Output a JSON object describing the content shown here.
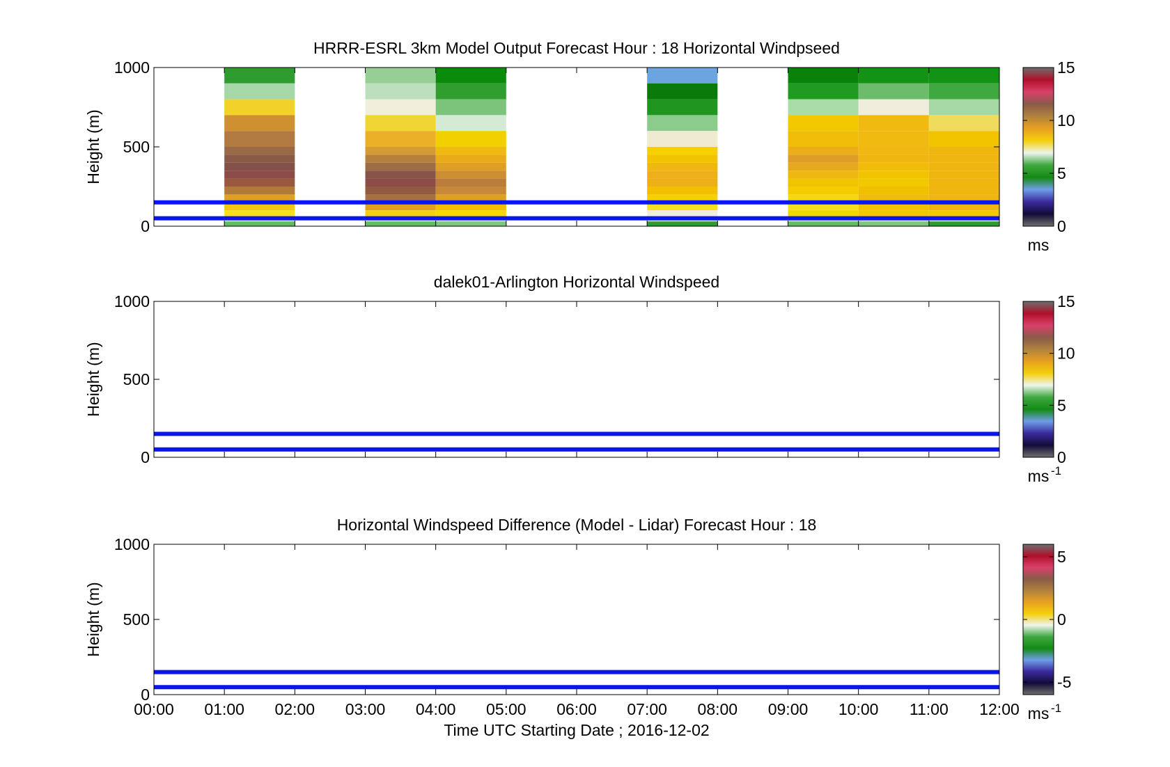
{
  "chart_data": [
    {
      "type": "heatmap",
      "title": "HRRR-ESRL 3km Model Output   Forecast Hour : 18 Horizontal Windpseed",
      "ylabel": "Height (m)",
      "xlabel": "",
      "ylim": [
        0,
        1000
      ],
      "yticks": [
        "0",
        "500",
        "1000"
      ],
      "xlim": [
        0,
        12
      ],
      "colorbar": {
        "label": "ms",
        "ticks": [
          {
            "v": 0,
            "t": "0"
          },
          {
            "v": 5,
            "t": "5"
          },
          {
            "v": 10,
            "t": "10"
          },
          {
            "v": 15,
            "t": "15"
          }
        ],
        "range": [
          0,
          15
        ]
      },
      "reference_lines_m": [
        150,
        50
      ],
      "columns": [
        {
          "hour_start": 1,
          "hour_end": 2,
          "tops": [
            1000,
            900,
            800,
            700,
            600,
            500,
            450,
            400,
            350,
            300,
            250,
            200,
            150,
            100,
            50,
            30
          ],
          "colors": [
            "#2e9c2e",
            "#a6d7a6",
            "#f2d22a",
            "#cf9030",
            "#b07a40",
            "#9a6a48",
            "#8a5a48",
            "#845048",
            "#8c4c48",
            "#9a5840",
            "#b07a38",
            "#e0a020",
            "#f2c810",
            "#f8e020",
            "#e9f0df",
            "#5fbf5f"
          ]
        },
        {
          "hour_start": 3,
          "hour_end": 4,
          "tops": [
            1000,
            900,
            800,
            700,
            600,
            500,
            450,
            400,
            350,
            300,
            250,
            200,
            150,
            100,
            50,
            30
          ],
          "colors": [
            "#96cf96",
            "#bce0bc",
            "#f1eedc",
            "#f0d632",
            "#e9b028",
            "#d59a34",
            "#b5803e",
            "#9c6c44",
            "#885448",
            "#8c4c48",
            "#935a42",
            "#a87040",
            "#e0a020",
            "#f6d010",
            "#e9f0df",
            "#5fbf5f"
          ]
        },
        {
          "hour_start": 4,
          "hour_end": 5,
          "tops": [
            1000,
            900,
            800,
            700,
            600,
            500,
            450,
            400,
            350,
            300,
            250,
            200,
            150,
            100,
            50,
            30
          ],
          "colors": [
            "#0a8c0a",
            "#2f9e2f",
            "#7cc47c",
            "#d4ead4",
            "#f2d000",
            "#efba10",
            "#e9ac18",
            "#df9e26",
            "#cd8e32",
            "#bb7e3a",
            "#c98838",
            "#e0a020",
            "#f2c000",
            "#f8d800",
            "#e9f0df",
            "#7cc87c"
          ]
        },
        {
          "hour_start": 7,
          "hour_end": 8,
          "tops": [
            1000,
            900,
            800,
            700,
            600,
            500,
            450,
            400,
            350,
            300,
            250,
            200,
            150,
            100,
            50,
            30
          ],
          "colors": [
            "#6ca4e0",
            "#0a7a0a",
            "#1f961f",
            "#8bcb8b",
            "#eeebd0",
            "#f6d000",
            "#f2c400",
            "#efb810",
            "#eeb018",
            "#eeb018",
            "#f2c000",
            "#f6d000",
            "#f8e020",
            "#f0eedc",
            "#d6ecd6",
            "#2e9c2e"
          ]
        },
        {
          "hour_start": 9,
          "hour_end": 10,
          "tops": [
            1000,
            900,
            800,
            700,
            600,
            500,
            450,
            400,
            350,
            300,
            250,
            200,
            150,
            100,
            50,
            30
          ],
          "colors": [
            "#0a820a",
            "#209a20",
            "#aadcaa",
            "#f2c800",
            "#f0be08",
            "#ebae18",
            "#de9e26",
            "#e6a81c",
            "#efb810",
            "#f2c400",
            "#f4cc00",
            "#f6d810",
            "#f8e020",
            "#f2d800",
            "#e0f0df",
            "#5fbf5f"
          ]
        },
        {
          "hour_start": 10,
          "hour_end": 11,
          "tops": [
            1000,
            900,
            800,
            700,
            600,
            500,
            450,
            400,
            350,
            300,
            250,
            200,
            150,
            100,
            50,
            30
          ],
          "colors": [
            "#139313",
            "#6cbc6c",
            "#f1eddc",
            "#f0ba10",
            "#f0ba10",
            "#f0b810",
            "#efb610",
            "#f0bc08",
            "#f2c400",
            "#f2c800",
            "#f0c000",
            "#f0bc08",
            "#f2c400",
            "#f2c800",
            "#e0f0df",
            "#7cc87c"
          ]
        },
        {
          "hour_start": 11,
          "hour_end": 12,
          "tops": [
            1000,
            900,
            800,
            700,
            600,
            500,
            450,
            400,
            350,
            300,
            250,
            200,
            150,
            100,
            50,
            30
          ],
          "colors": [
            "#139313",
            "#3fa83f",
            "#a6d8a6",
            "#f0dc5c",
            "#f2c400",
            "#efb610",
            "#efb610",
            "#efb610",
            "#efb610",
            "#efb610",
            "#efb610",
            "#efb610",
            "#efb610",
            "#f2c800",
            "#e0f0df",
            "#2e9c2e"
          ]
        }
      ]
    },
    {
      "type": "heatmap",
      "title": "dalek01-Arlington  Horizontal Windspeed",
      "ylabel": "Height (m)",
      "xlabel": "",
      "ylim": [
        0,
        1000
      ],
      "yticks": [
        "0",
        "500",
        "1000"
      ],
      "xlim": [
        0,
        12
      ],
      "colorbar": {
        "label": "ms",
        "label_sup": "-1",
        "ticks": [
          {
            "v": 0,
            "t": "0"
          },
          {
            "v": 5,
            "t": "5"
          },
          {
            "v": 10,
            "t": "10"
          },
          {
            "v": 15,
            "t": "15"
          }
        ],
        "range": [
          0,
          15
        ]
      },
      "reference_lines_m": [
        150,
        50
      ],
      "columns": []
    },
    {
      "type": "heatmap",
      "title": "Horizontal Windspeed Difference (Model - Lidar) Forecast Hour : 18",
      "ylabel": "Height (m)",
      "xlabel": "Time UTC  Starting Date ; 2016-12-02",
      "ylim": [
        0,
        1000
      ],
      "yticks": [
        "0",
        "500",
        "1000"
      ],
      "xlim": [
        0,
        12
      ],
      "xticks": [
        "00:00",
        "01:00",
        "02:00",
        "03:00",
        "04:00",
        "05:00",
        "06:00",
        "07:00",
        "08:00",
        "09:00",
        "10:00",
        "11:00",
        "12:00"
      ],
      "colorbar": {
        "label": "ms",
        "label_sup": "-1",
        "ticks": [
          {
            "v": -5,
            "t": "-5"
          },
          {
            "v": 0,
            "t": "0"
          },
          {
            "v": 5,
            "t": "5"
          }
        ],
        "range": [
          -6,
          6
        ]
      },
      "reference_lines_m": [
        150,
        50
      ],
      "columns": []
    }
  ],
  "colorbar_colors": [
    "#6e6e6e",
    "#120c38",
    "#3a2a9e",
    "#6f9ee8",
    "#138a13",
    "#3ea83e",
    "#eef5ec",
    "#f4cf0c",
    "#e8a020",
    "#b0823e",
    "#8a5a48",
    "#d8406a",
    "#b0102a",
    "#6e6e6e"
  ],
  "reference_line_color": "#0a14ee"
}
